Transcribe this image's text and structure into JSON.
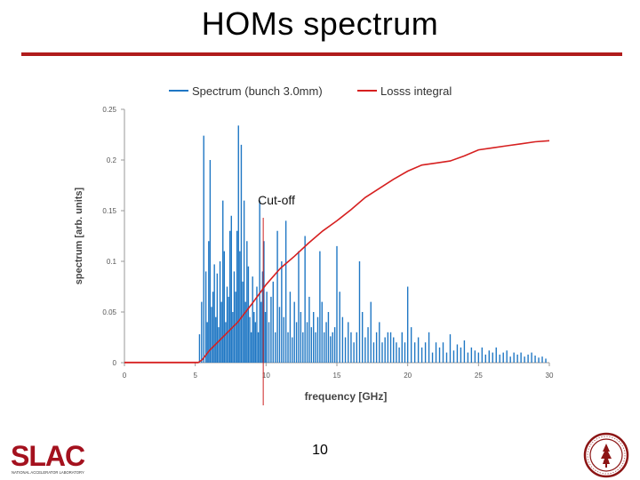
{
  "slide": {
    "title": "HOMs spectrum",
    "page_number": "10"
  },
  "logos": {
    "left": {
      "name": "SLAC",
      "subtitle": "NATIONAL ACCELERATOR LABORATORY"
    },
    "right": {
      "name": "Stanford University seal"
    }
  },
  "colors": {
    "title_rule": "#b01c1c",
    "spectrum": "#1f77c4",
    "loss_integral": "#d62020",
    "cutoff_line": "#cc2222",
    "axis": "#9a9a9a"
  },
  "chart_data": {
    "type": "line",
    "xlabel": "frequency [GHz]",
    "ylabel": "spectrum [arb. units]",
    "xlim": [
      0,
      30
    ],
    "ylim": [
      0,
      0.25
    ],
    "xticks": [
      "0",
      "5",
      "10",
      "15",
      "20",
      "25",
      "30"
    ],
    "yticks": [
      "0",
      "0.05",
      "0.1",
      "0.15",
      "0.2",
      "0.25"
    ],
    "grid": false,
    "legend_position": "top",
    "annotation": {
      "text": "Cut-off",
      "x": 9.8
    },
    "series": [
      {
        "name": "Spectrum (bunch 3.0mm)",
        "style": "spikes",
        "x": [
          5.3,
          5.45,
          5.6,
          5.75,
          5.85,
          5.95,
          6.05,
          6.15,
          6.25,
          6.35,
          6.45,
          6.55,
          6.65,
          6.75,
          6.85,
          6.95,
          7.05,
          7.15,
          7.25,
          7.35,
          7.45,
          7.55,
          7.65,
          7.75,
          7.85,
          7.95,
          8.05,
          8.15,
          8.25,
          8.35,
          8.45,
          8.55,
          8.65,
          8.75,
          8.85,
          8.95,
          9.05,
          9.15,
          9.25,
          9.35,
          9.45,
          9.55,
          9.65,
          9.75,
          9.85,
          9.95,
          10.05,
          10.2,
          10.35,
          10.5,
          10.65,
          10.8,
          10.95,
          11.1,
          11.25,
          11.4,
          11.55,
          11.7,
          11.85,
          12.0,
          12.15,
          12.3,
          12.45,
          12.6,
          12.75,
          12.9,
          13.05,
          13.2,
          13.35,
          13.5,
          13.65,
          13.8,
          13.95,
          14.1,
          14.25,
          14.4,
          14.55,
          14.7,
          14.85,
          15.0,
          15.2,
          15.4,
          15.6,
          15.8,
          16.0,
          16.2,
          16.4,
          16.6,
          16.8,
          17.0,
          17.2,
          17.4,
          17.6,
          17.8,
          18.0,
          18.2,
          18.4,
          18.6,
          18.8,
          19.0,
          19.2,
          19.4,
          19.6,
          19.8,
          20.0,
          20.25,
          20.5,
          20.75,
          21.0,
          21.25,
          21.5,
          21.75,
          22.0,
          22.25,
          22.5,
          22.75,
          23.0,
          23.25,
          23.5,
          23.75,
          24.0,
          24.25,
          24.5,
          24.75,
          25.0,
          25.25,
          25.5,
          25.75,
          26.0,
          26.25,
          26.5,
          26.75,
          27.0,
          27.25,
          27.5,
          27.75,
          28.0,
          28.25,
          28.5,
          28.75,
          29.0,
          29.25,
          29.5,
          29.75
        ],
        "y": [
          0.028,
          0.06,
          0.224,
          0.09,
          0.04,
          0.12,
          0.2,
          0.055,
          0.07,
          0.097,
          0.045,
          0.088,
          0.035,
          0.1,
          0.06,
          0.16,
          0.11,
          0.04,
          0.075,
          0.065,
          0.13,
          0.145,
          0.05,
          0.09,
          0.07,
          0.13,
          0.234,
          0.11,
          0.215,
          0.08,
          0.16,
          0.06,
          0.12,
          0.095,
          0.045,
          0.03,
          0.085,
          0.05,
          0.04,
          0.075,
          0.03,
          0.16,
          0.06,
          0.09,
          0.12,
          0.05,
          0.07,
          0.04,
          0.065,
          0.08,
          0.03,
          0.13,
          0.055,
          0.1,
          0.045,
          0.14,
          0.03,
          0.07,
          0.025,
          0.06,
          0.04,
          0.11,
          0.05,
          0.03,
          0.125,
          0.04,
          0.065,
          0.035,
          0.05,
          0.03,
          0.045,
          0.11,
          0.06,
          0.03,
          0.04,
          0.05,
          0.026,
          0.03,
          0.035,
          0.115,
          0.07,
          0.045,
          0.025,
          0.04,
          0.03,
          0.02,
          0.03,
          0.1,
          0.05,
          0.025,
          0.035,
          0.06,
          0.02,
          0.03,
          0.04,
          0.02,
          0.025,
          0.03,
          0.03,
          0.025,
          0.02,
          0.015,
          0.03,
          0.02,
          0.075,
          0.035,
          0.02,
          0.025,
          0.015,
          0.02,
          0.03,
          0.01,
          0.02,
          0.015,
          0.02,
          0.01,
          0.028,
          0.012,
          0.018,
          0.015,
          0.022,
          0.01,
          0.015,
          0.012,
          0.01,
          0.015,
          0.008,
          0.012,
          0.01,
          0.015,
          0.008,
          0.01,
          0.012,
          0.006,
          0.01,
          0.008,
          0.01,
          0.006,
          0.008,
          0.01,
          0.007,
          0.005,
          0.006,
          0.004
        ]
      },
      {
        "name": "Losss integral",
        "style": "line",
        "x": [
          0,
          5.2,
          5.5,
          6,
          7,
          8,
          9,
          10,
          11,
          12,
          13,
          14,
          15,
          16,
          17,
          18,
          19,
          20,
          21,
          22,
          23,
          24,
          25,
          26,
          27,
          28,
          29,
          30
        ],
        "y": [
          0,
          0,
          0.003,
          0.012,
          0.026,
          0.04,
          0.058,
          0.077,
          0.093,
          0.105,
          0.118,
          0.13,
          0.14,
          0.151,
          0.163,
          0.172,
          0.181,
          0.189,
          0.195,
          0.197,
          0.199,
          0.204,
          0.21,
          0.212,
          0.214,
          0.216,
          0.218,
          0.219
        ]
      }
    ]
  }
}
